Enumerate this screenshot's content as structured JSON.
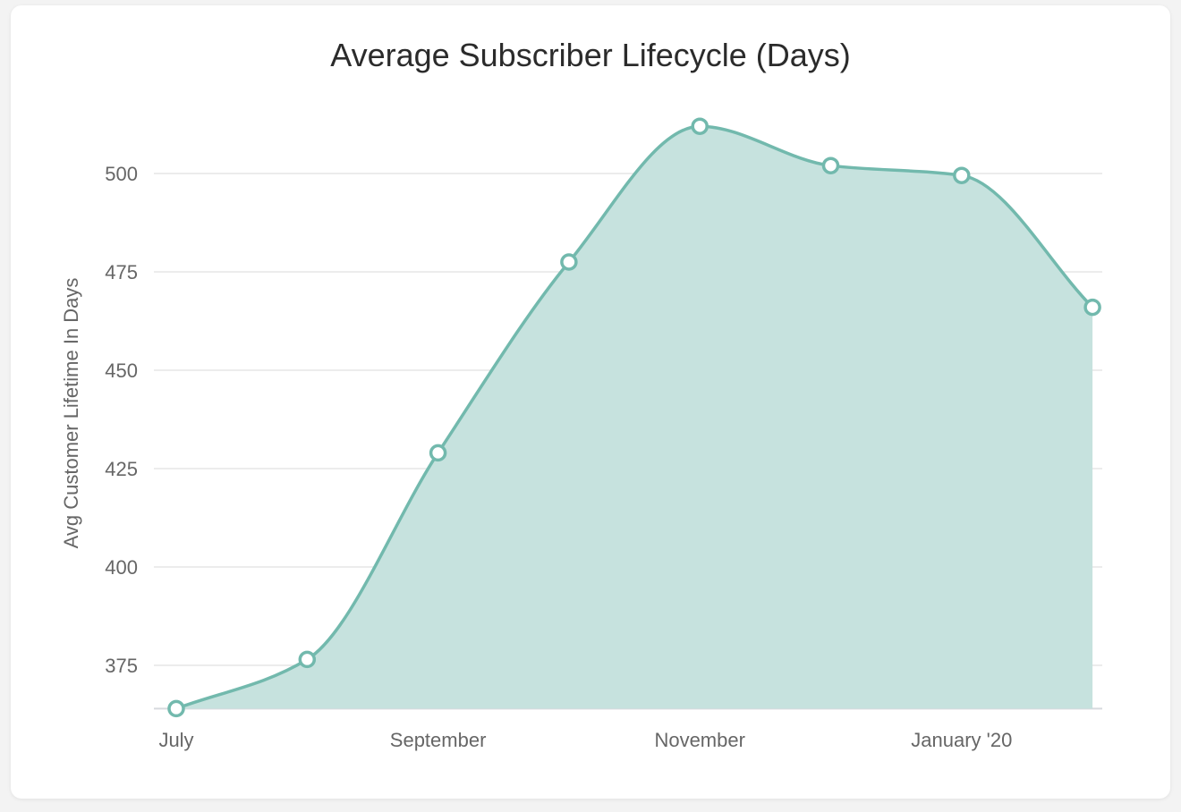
{
  "chart_data": {
    "type": "area",
    "title": "Average Subscriber Lifecycle (Days)",
    "xlabel": "",
    "ylabel": "Avg Customer Lifetime In Days",
    "x_tick_labels": [
      "July",
      "September",
      "November",
      "January '20"
    ],
    "x_tick_month_index": [
      0,
      2,
      4,
      6
    ],
    "y_ticks": [
      375,
      400,
      425,
      450,
      475,
      500
    ],
    "ylim": [
      364,
      512
    ],
    "grid": true,
    "legend": "none",
    "points": [
      {
        "month_index": 0,
        "value": 364
      },
      {
        "month_index": 1,
        "value": 376.5
      },
      {
        "month_index": 2,
        "value": 429
      },
      {
        "month_index": 3,
        "value": 477.5
      },
      {
        "month_index": 4,
        "value": 512
      },
      {
        "month_index": 5,
        "value": 502
      },
      {
        "month_index": 6,
        "value": 499.5
      },
      {
        "month_index": 7,
        "value": 466
      }
    ],
    "colors": {
      "line": "#72b9ad",
      "fill": "#c6e2de",
      "grid": "#e6e6e6",
      "marker_fill": "#ffffff"
    }
  }
}
